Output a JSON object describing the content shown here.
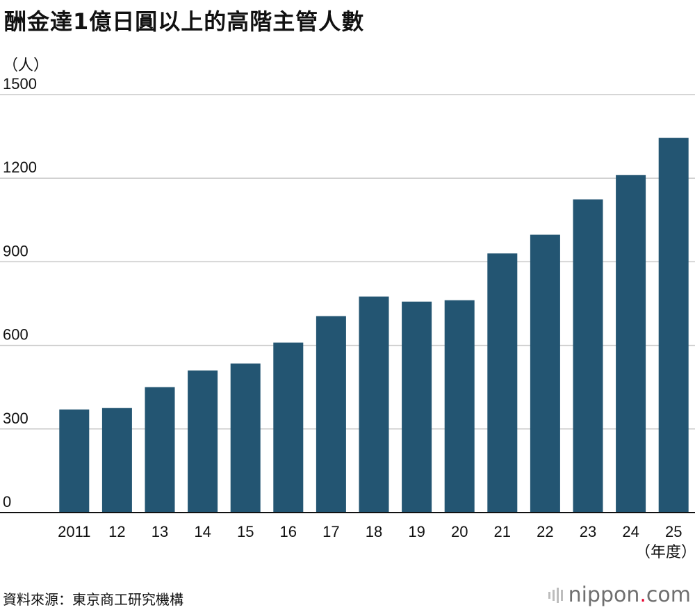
{
  "title": "酬金達1億日圓以上的高階主管人數",
  "unit_label": "（人）",
  "x_unit_label": "（年度）",
  "source": "資料來源：東京商工研究機構",
  "brand": {
    "name": "nippon",
    "dot": ".",
    "tld": "com"
  },
  "colors": {
    "bar": "#235572",
    "grid": "#c8c8c8",
    "axis": "#111111",
    "brand_dot": "#e6002d"
  },
  "chart_data": {
    "type": "bar",
    "title": "酬金達1億日圓以上的高階主管人數",
    "ylabel": "（人）",
    "xlabel": "（年度）",
    "categories": [
      "2011",
      "12",
      "13",
      "14",
      "15",
      "16",
      "17",
      "18",
      "19",
      "20",
      "21",
      "22",
      "23",
      "24",
      "25"
    ],
    "values": [
      370,
      375,
      450,
      510,
      535,
      610,
      705,
      775,
      757,
      762,
      930,
      997,
      1124,
      1211,
      1345
    ],
    "yticks": [
      0,
      300,
      600,
      900,
      1200,
      1500
    ],
    "ylim": [
      0,
      1500
    ],
    "grid": true
  }
}
